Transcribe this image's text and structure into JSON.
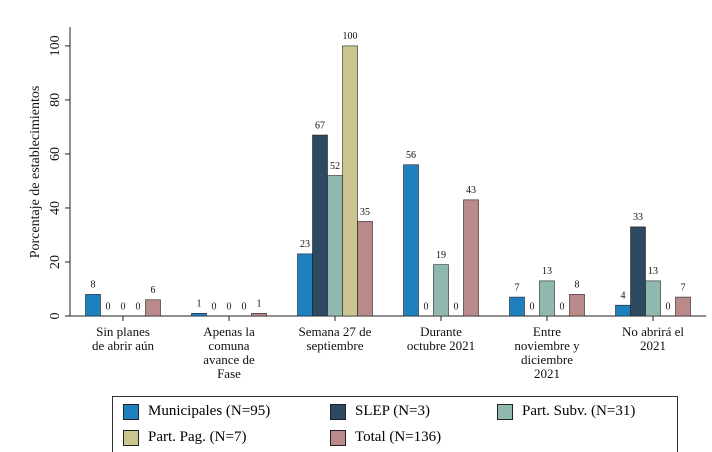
{
  "chart_data": {
    "type": "bar",
    "ylabel": "Porcentaje de establecimientos",
    "categories": [
      "Sin planes\nde abrir aún",
      "Apenas la\ncomuna\navance de\nFase",
      "Semana 27 de\nseptiembre",
      "Durante\noctubre 2021",
      "Entre\nnoviembre y\ndiciembre\n2021",
      "No abrirá el\n2021"
    ],
    "series": [
      {
        "name": "Municipales (N=95)",
        "color": "#1f80bf",
        "values": [
          8,
          1,
          23,
          56,
          7,
          4
        ]
      },
      {
        "name": "SLEP (N=3)",
        "color": "#2d4a62",
        "values": [
          0,
          0,
          67,
          0,
          0,
          33
        ]
      },
      {
        "name": "Part. Subv. (N=31)",
        "color": "#8fb9af",
        "values": [
          0,
          0,
          52,
          19,
          13,
          13
        ]
      },
      {
        "name": "Part. Pag. (N=7)",
        "color": "#cbc68f",
        "values": [
          0,
          0,
          100,
          0,
          0,
          0
        ]
      },
      {
        "name": "Total (N=136)",
        "color": "#b98a89",
        "values": [
          6,
          1,
          35,
          43,
          8,
          7
        ]
      }
    ],
    "ylim": [
      0,
      107
    ],
    "yticks": [
      0,
      20,
      40,
      60,
      80,
      100
    ],
    "grid": false
  }
}
